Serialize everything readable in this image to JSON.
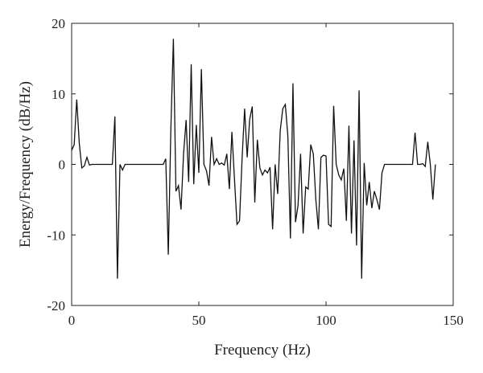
{
  "chart_data": {
    "type": "line",
    "title": "",
    "xlabel": "Frequency (Hz)",
    "ylabel": "Energy/Frequency (dB/Hz)",
    "xlim": [
      0,
      150
    ],
    "ylim": [
      -20,
      20
    ],
    "xticks": [
      0,
      50,
      100,
      150
    ],
    "yticks": [
      -20,
      -10,
      0,
      10,
      20
    ],
    "xtick_labels": [
      "0",
      "50",
      "100",
      "150"
    ],
    "ytick_labels": [
      "-20",
      "-10",
      "0",
      "10",
      "20"
    ],
    "grid": false,
    "legend": false,
    "series": [
      {
        "color": "#111111",
        "x": [
          0,
          1,
          2,
          3,
          4,
          5,
          6,
          7,
          8,
          9,
          10,
          11,
          12,
          13,
          14,
          15,
          16,
          17,
          18,
          19,
          20,
          21,
          22,
          23,
          24,
          25,
          26,
          27,
          28,
          29,
          30,
          31,
          32,
          33,
          34,
          35,
          36,
          37,
          38,
          39,
          40,
          41,
          42,
          43,
          44,
          45,
          46,
          47,
          48,
          49,
          50,
          51,
          52,
          53,
          54,
          55,
          56,
          57,
          58,
          59,
          60,
          61,
          62,
          63,
          64,
          65,
          66,
          67,
          68,
          69,
          70,
          71,
          72,
          73,
          74,
          75,
          76,
          77,
          78,
          79,
          80,
          81,
          82,
          83,
          84,
          85,
          86,
          87,
          88,
          89,
          90,
          91,
          92,
          93,
          94,
          95,
          96,
          97,
          98,
          99,
          100,
          101,
          102,
          103,
          104,
          105,
          106,
          107,
          108,
          109,
          110,
          111,
          112,
          113,
          114,
          115,
          116,
          117,
          118,
          119,
          120,
          121,
          122,
          123,
          124,
          125,
          126,
          127,
          128,
          129,
          130,
          131,
          132,
          133,
          134,
          135,
          136,
          137,
          138,
          139,
          140,
          141,
          142,
          143
        ],
        "values": [
          2.0,
          2.8,
          9.2,
          3.0,
          -0.5,
          -0.2,
          1.0,
          -0.1,
          0.0,
          0.0,
          0.0,
          0.0,
          0.0,
          0.0,
          0.0,
          0.0,
          0.0,
          6.8,
          -16.2,
          0.0,
          -0.8,
          0.0,
          0.0,
          0.0,
          0.0,
          0.0,
          0.0,
          0.0,
          0.0,
          0.0,
          0.0,
          0.0,
          0.0,
          0.0,
          0.0,
          0.0,
          0.0,
          0.8,
          -12.8,
          5.0,
          17.8,
          -3.8,
          -3.0,
          -6.4,
          1.5,
          6.3,
          -2.5,
          14.2,
          -2.8,
          5.6,
          -1.2,
          13.5,
          0.0,
          -0.9,
          -3.0,
          3.9,
          0.0,
          0.8,
          0.0,
          0.2,
          -0.1,
          1.5,
          -3.5,
          4.6,
          -2.0,
          -8.5,
          -8.0,
          0.8,
          7.9,
          1.0,
          6.4,
          8.2,
          -5.4,
          3.5,
          -0.5,
          -1.5,
          -0.8,
          -1.2,
          -0.4,
          -9.2,
          0.0,
          -4.2,
          4.8,
          7.9,
          8.5,
          4.0,
          -10.5,
          11.5,
          -8.2,
          -5.8,
          1.5,
          -9.8,
          -3.2,
          -3.5,
          2.8,
          1.5,
          -5.0,
          -9.2,
          1.0,
          1.3,
          1.2,
          -8.5,
          -8.8,
          8.3,
          0.0,
          -1.5,
          -2.2,
          -0.6,
          -8.0,
          5.5,
          -9.8,
          3.4,
          -11.5,
          10.5,
          -16.2,
          0.2,
          -5.8,
          -2.5,
          -6.2,
          -3.8,
          -5.0,
          -6.4,
          -1.2,
          0.0,
          0.0,
          0.0,
          0.0,
          0.0,
          0.0,
          0.0,
          0.0,
          0.0,
          0.0,
          0.0,
          0.0,
          4.5,
          0.0,
          0.0,
          0.1,
          -0.3,
          3.2,
          0.0,
          -5.0,
          0.0
        ]
      }
    ]
  }
}
